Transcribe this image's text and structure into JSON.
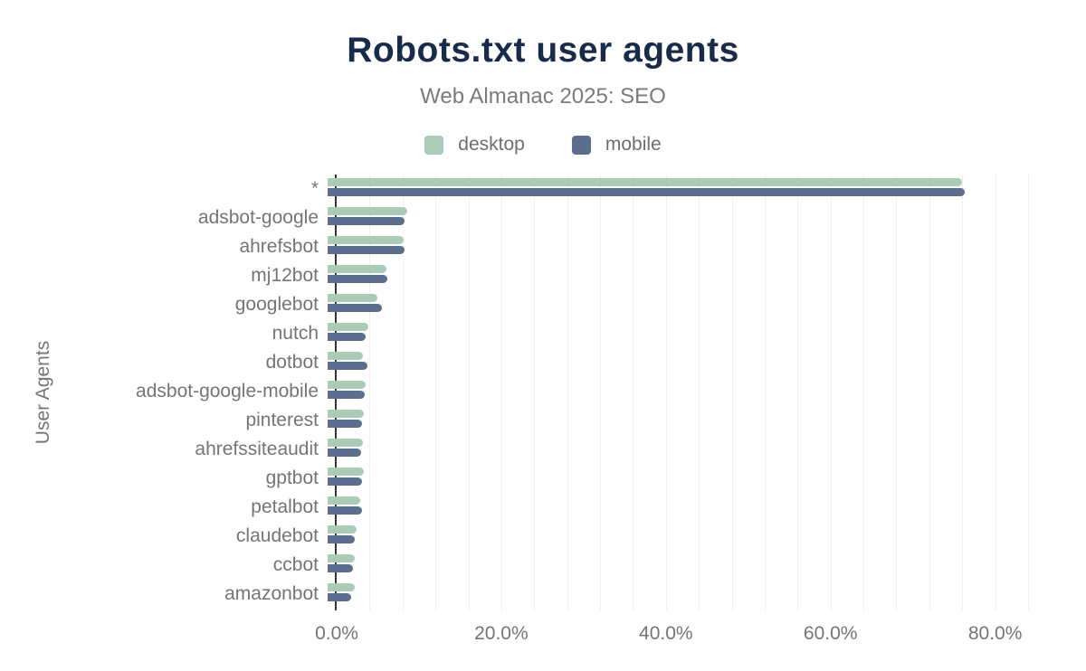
{
  "header": {
    "title": "Robots.txt user agents",
    "subtitle": "Web Almanac 2025: SEO"
  },
  "legend": [
    {
      "label": "desktop",
      "color": "#a9cbb7"
    },
    {
      "label": "mobile",
      "color": "#5c6e8e"
    }
  ],
  "axes": {
    "y_title": "User Agents",
    "x_ticks": [
      {
        "label": "0.0%",
        "value": 0
      },
      {
        "label": "20.0%",
        "value": 20
      },
      {
        "label": "40.0%",
        "value": 40
      },
      {
        "label": "60.0%",
        "value": 60
      },
      {
        "label": "80.0%",
        "value": 80
      }
    ],
    "x_max": 84,
    "grid_step": 4
  },
  "colors": {
    "title": "#1a2b4a",
    "axis_text": "#757575",
    "gridline": "#f0f0f0",
    "axis_line": "#333333"
  },
  "chart_data": {
    "type": "bar",
    "orientation": "horizontal",
    "title": "Robots.txt user agents",
    "subtitle": "Web Almanac 2025: SEO",
    "xlabel": "",
    "ylabel": "User Agents",
    "unit": "%",
    "xlim": [
      0,
      84
    ],
    "grid": "vertical-minor-every-4",
    "legend_position": "top",
    "categories": [
      "*",
      "adsbot-google",
      "ahrefsbot",
      "mj12bot",
      "googlebot",
      "nutch",
      "dotbot",
      "adsbot-google-mobile",
      "pinterest",
      "ahrefssiteaudit",
      "gptbot",
      "petalbot",
      "claudebot",
      "ccbot",
      "amazonbot"
    ],
    "series": [
      {
        "name": "desktop",
        "color": "#a9cbb7",
        "values": [
          77.1,
          9.7,
          9.2,
          7.2,
          6.1,
          4.9,
          4.3,
          4.6,
          4.4,
          4.3,
          4.4,
          4.0,
          3.5,
          3.3,
          3.3
        ]
      },
      {
        "name": "mobile",
        "color": "#5c6e8e",
        "values": [
          77.4,
          9.4,
          9.4,
          7.3,
          6.6,
          4.6,
          4.8,
          4.5,
          4.2,
          4.1,
          4.2,
          4.2,
          3.3,
          3.1,
          2.9
        ]
      }
    ]
  }
}
